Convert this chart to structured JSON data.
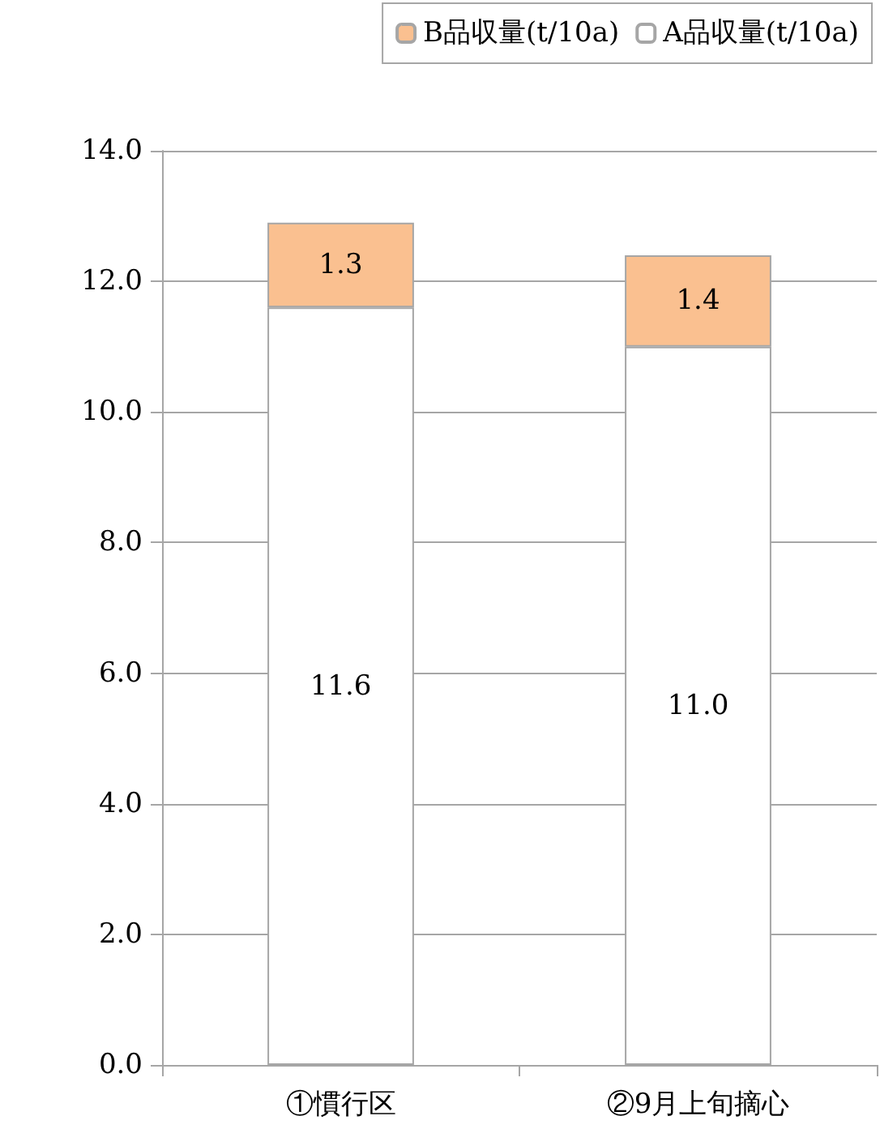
{
  "chart_data": {
    "type": "bar",
    "stacked": true,
    "categories": [
      "①慣行区",
      "②9月上旬摘心"
    ],
    "series": [
      {
        "name": "A品収量(t/10a)",
        "color": "#ffffff",
        "values": [
          11.6,
          11.0
        ],
        "value_labels": [
          "11.6",
          "11.0"
        ]
      },
      {
        "name": "B品収量(t/10a)",
        "color": "#fac090",
        "values": [
          1.3,
          1.4
        ],
        "value_labels": [
          "1.3",
          "1.4"
        ]
      }
    ],
    "ylim": [
      0,
      14
    ],
    "yticks": [
      {
        "value": 0,
        "label": "0.0"
      },
      {
        "value": 2,
        "label": "2.0"
      },
      {
        "value": 4,
        "label": "4.0"
      },
      {
        "value": 6,
        "label": "6.0"
      },
      {
        "value": 8,
        "label": "8.0"
      },
      {
        "value": 10,
        "label": "10.0"
      },
      {
        "value": 12,
        "label": "12.0"
      },
      {
        "value": 14,
        "label": "14.0"
      }
    ],
    "grid": "y",
    "legend": "top"
  }
}
